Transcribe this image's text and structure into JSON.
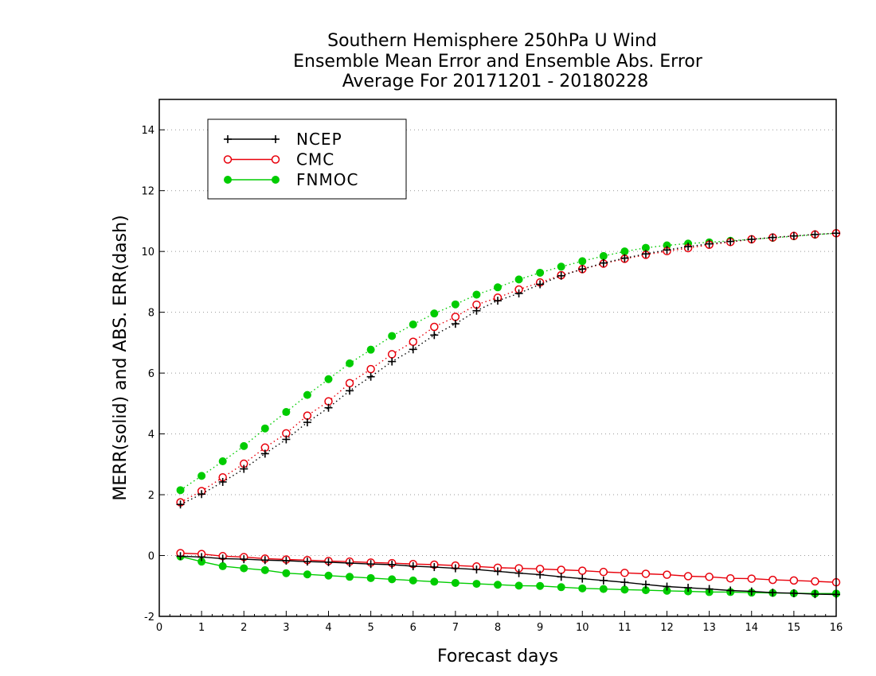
{
  "chart_data": {
    "type": "line",
    "title": [
      "Southern Hemisphere 250hPa U Wind",
      "Ensemble Mean Error and Ensemble Abs. Error",
      "Average For 20171201 - 20180228"
    ],
    "xlabel": "Forecast days",
    "ylabel": "MERR(solid) and ABS. ERR(dash)",
    "xlim": [
      0,
      16
    ],
    "ylim": [
      -2,
      15
    ],
    "xticks": [
      0,
      1,
      2,
      3,
      4,
      5,
      6,
      7,
      8,
      9,
      10,
      11,
      12,
      13,
      14,
      15,
      16
    ],
    "yticks": [
      -2,
      0,
      2,
      4,
      6,
      8,
      10,
      12,
      14
    ],
    "grid": true,
    "legend_position": "top-left",
    "x": [
      0.5,
      1,
      1.5,
      2,
      2.5,
      3,
      3.5,
      4,
      4.5,
      5,
      5.5,
      6,
      6.5,
      7,
      7.5,
      8,
      8.5,
      9,
      9.5,
      10,
      10.5,
      11,
      11.5,
      12,
      12.5,
      13,
      13.5,
      14,
      14.5,
      15,
      15.5,
      16
    ],
    "series": [
      {
        "name": "NCEP",
        "color": "#000000",
        "marker": "plus",
        "abs_err": [
          1.68,
          2.02,
          2.42,
          2.85,
          3.35,
          3.82,
          4.38,
          4.86,
          5.42,
          5.88,
          6.38,
          6.78,
          7.25,
          7.62,
          8.05,
          8.38,
          8.62,
          8.92,
          9.2,
          9.42,
          9.62,
          9.78,
          9.92,
          10.05,
          10.16,
          10.25,
          10.33,
          10.4,
          10.46,
          10.51,
          10.56,
          10.6
        ],
        "mean_err": [
          -0.02,
          -0.05,
          -0.1,
          -0.12,
          -0.15,
          -0.17,
          -0.2,
          -0.22,
          -0.25,
          -0.28,
          -0.3,
          -0.35,
          -0.38,
          -0.42,
          -0.46,
          -0.52,
          -0.58,
          -0.63,
          -0.7,
          -0.76,
          -0.82,
          -0.88,
          -0.95,
          -1.02,
          -1.06,
          -1.1,
          -1.15,
          -1.18,
          -1.22,
          -1.24,
          -1.27,
          -1.28
        ]
      },
      {
        "name": "CMC",
        "color": "#e8000b",
        "marker": "open-circle",
        "abs_err": [
          1.75,
          2.12,
          2.57,
          3.02,
          3.55,
          4.02,
          4.6,
          5.07,
          5.67,
          6.13,
          6.62,
          7.03,
          7.52,
          7.85,
          8.25,
          8.48,
          8.75,
          8.98,
          9.22,
          9.42,
          9.6,
          9.76,
          9.89,
          10.01,
          10.11,
          10.22,
          10.31,
          10.4,
          10.46,
          10.51,
          10.56,
          10.6
        ],
        "mean_err": [
          0.08,
          0.05,
          -0.02,
          -0.05,
          -0.1,
          -0.13,
          -0.15,
          -0.18,
          -0.2,
          -0.23,
          -0.25,
          -0.28,
          -0.3,
          -0.33,
          -0.36,
          -0.4,
          -0.42,
          -0.44,
          -0.47,
          -0.5,
          -0.54,
          -0.57,
          -0.6,
          -0.63,
          -0.68,
          -0.7,
          -0.75,
          -0.76,
          -0.8,
          -0.82,
          -0.85,
          -0.88
        ]
      },
      {
        "name": "FNMOC",
        "color": "#00cc00",
        "marker": "filled-circle",
        "abs_err": [
          2.15,
          2.62,
          3.1,
          3.6,
          4.18,
          4.72,
          5.28,
          5.8,
          6.32,
          6.77,
          7.22,
          7.6,
          7.96,
          8.26,
          8.58,
          8.82,
          9.08,
          9.3,
          9.5,
          9.68,
          9.85,
          10.0,
          10.12,
          10.2,
          10.26,
          10.3,
          10.35,
          10.4,
          10.45,
          10.5,
          10.55,
          10.6
        ],
        "mean_err": [
          -0.03,
          -0.2,
          -0.35,
          -0.42,
          -0.48,
          -0.58,
          -0.62,
          -0.66,
          -0.7,
          -0.74,
          -0.78,
          -0.82,
          -0.86,
          -0.9,
          -0.93,
          -0.96,
          -0.99,
          -1.0,
          -1.04,
          -1.08,
          -1.1,
          -1.12,
          -1.14,
          -1.16,
          -1.18,
          -1.2,
          -1.2,
          -1.22,
          -1.23,
          -1.24,
          -1.25,
          -1.25
        ]
      }
    ]
  }
}
